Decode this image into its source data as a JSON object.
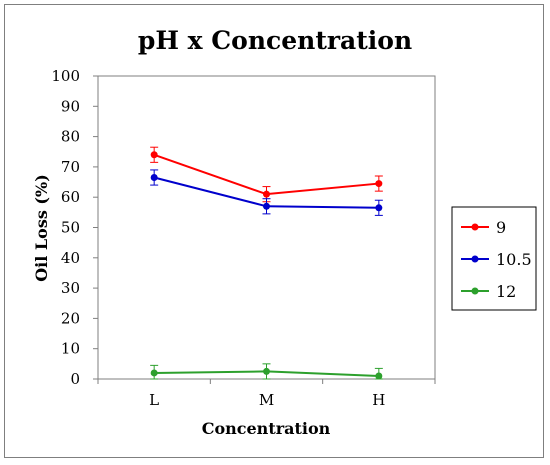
{
  "chart_data": {
    "type": "line",
    "title": "pH x Concentration",
    "xlabel": "Concentration",
    "ylabel": "Oil Loss (%)",
    "categories": [
      "L",
      "M",
      "H"
    ],
    "ylim": [
      0,
      100
    ],
    "yticks": [
      0,
      10,
      20,
      30,
      40,
      50,
      60,
      70,
      80,
      90,
      100
    ],
    "grid": false,
    "legend_position": "right",
    "series": [
      {
        "name": "9",
        "color": "#ff0000",
        "values": [
          74,
          61,
          64.5
        ],
        "errors": [
          2.5,
          2.5,
          2.5
        ]
      },
      {
        "name": "10.5",
        "color": "#0000cc",
        "values": [
          66.5,
          57,
          56.5
        ],
        "errors": [
          2.5,
          2.5,
          2.5
        ]
      },
      {
        "name": "12",
        "color": "#2ca02c",
        "values": [
          2,
          2.5,
          1
        ],
        "errors": [
          2.5,
          2.5,
          2.5
        ]
      }
    ]
  }
}
